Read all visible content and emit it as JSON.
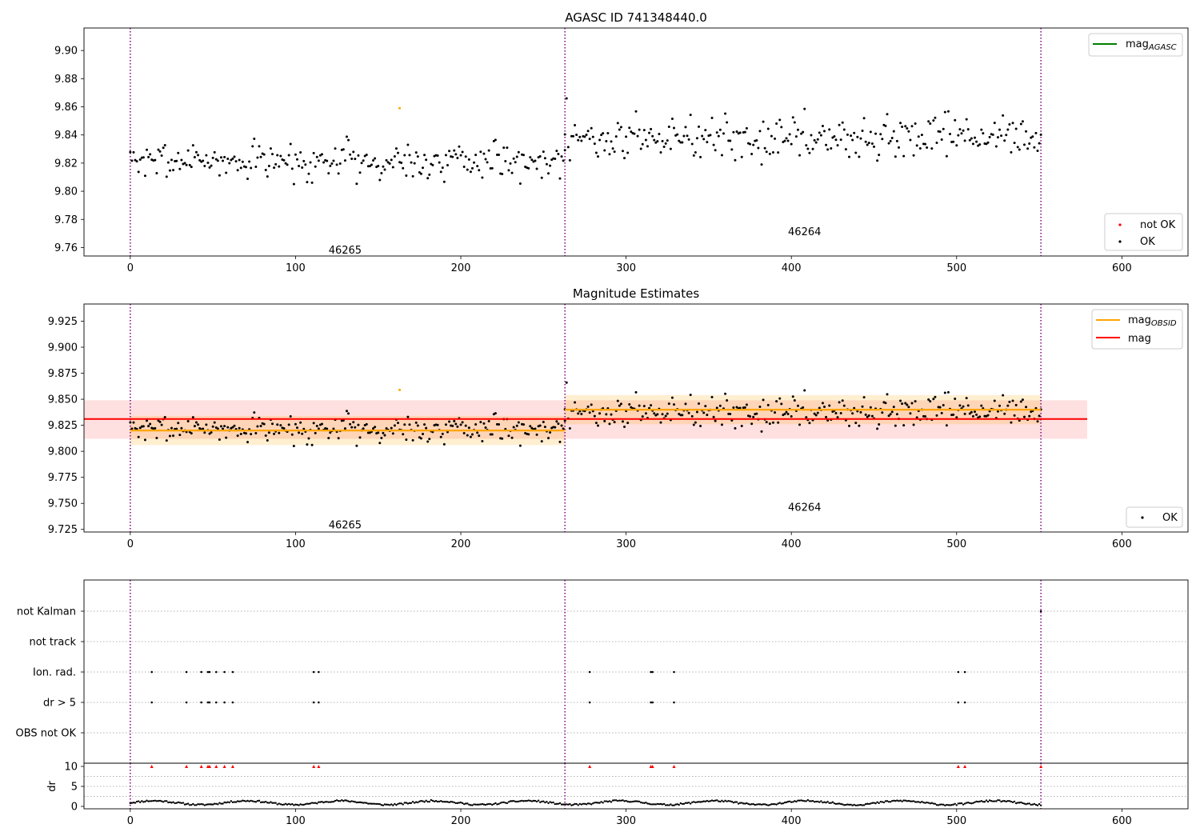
{
  "figure": {
    "panel1_title": "AGASC ID 741348440.0",
    "panel2_title": "Magnitude Estimates"
  },
  "chart_data": [
    {
      "type": "scatter",
      "title": "AGASC ID 741348440.0",
      "xlim": [
        -28,
        640
      ],
      "ylim": [
        9.754,
        9.916
      ],
      "xticks": [
        0,
        100,
        200,
        300,
        400,
        500,
        600
      ],
      "yticks": [
        9.76,
        9.78,
        9.8,
        9.82,
        9.84,
        9.86,
        9.88,
        9.9
      ],
      "grid": false,
      "observation_boundaries": [
        0,
        263,
        551
      ],
      "observation_labels": [
        {
          "text": "46265",
          "x": 130,
          "y": 9.758
        },
        {
          "text": "46264",
          "x": 408,
          "y": 9.771
        }
      ],
      "series": [
        {
          "name": "mag_AGASC",
          "kind": "line",
          "color": "#008000",
          "values": []
        },
        {
          "name": "not OK",
          "kind": "scatter",
          "color": "#ff0000",
          "values": []
        },
        {
          "name": "OK",
          "kind": "scatter",
          "color": "#000000",
          "seed": 7,
          "segments": [
            {
              "x": [
                0,
                263
              ],
              "center": 9.822,
              "spread": 0.013
            },
            {
              "x": [
                263,
                551
              ],
              "center": 9.838,
              "spread": 0.014
            }
          ]
        },
        {
          "name": "",
          "kind": "scatter",
          "color": "#ffa500",
          "points": [
            [
              163,
              9.859
            ]
          ]
        }
      ],
      "legend": {
        "upper": [
          "mag_AGASC"
        ],
        "lower": [
          "not OK",
          "OK"
        ],
        "placement": "top-right / bottom-right"
      }
    },
    {
      "type": "scatter",
      "title": "Magnitude Estimates",
      "xlim": [
        -28,
        640
      ],
      "ylim": [
        9.7225,
        9.9415
      ],
      "xticks": [
        0,
        100,
        200,
        300,
        400,
        500,
        600
      ],
      "yticks": [
        9.725,
        9.75,
        9.775,
        9.8,
        9.825,
        9.85,
        9.875,
        9.9,
        9.925
      ],
      "grid": false,
      "observation_boundaries": [
        0,
        263,
        551
      ],
      "observation_labels": [
        {
          "text": "46265",
          "x": 130,
          "y": 9.729
        },
        {
          "text": "46264",
          "x": 408,
          "y": 9.746
        }
      ],
      "mag": {
        "value": 9.831,
        "band": [
          9.812,
          9.849
        ],
        "x_range": [
          -28,
          579
        ],
        "color": "#ff0000"
      },
      "mag_obsid": [
        {
          "x": [
            0,
            263
          ],
          "value": 9.82,
          "band": [
            9.806,
            9.834
          ]
        },
        {
          "x": [
            263,
            551
          ],
          "value": 9.84,
          "band": [
            9.826,
            9.854
          ]
        }
      ],
      "series": [
        {
          "name": "mag_OBSID",
          "kind": "line",
          "color": "#ffa500"
        },
        {
          "name": "mag",
          "kind": "line",
          "color": "#ff0000"
        },
        {
          "name": "OK",
          "kind": "scatter",
          "color": "#000000",
          "seed": 7
        }
      ],
      "legend": {
        "upper": [
          "mag_OBSID",
          "mag"
        ],
        "lower": [
          "OK"
        ],
        "placement": "top-right / bottom-right"
      }
    },
    {
      "type": "scatter",
      "title": "",
      "xlim": [
        -28,
        640
      ],
      "xticks": [
        0,
        100,
        200,
        300,
        400,
        500,
        600
      ],
      "flag_rows": [
        "not Kalman",
        "not track",
        "Ion. rad.",
        "dr > 5",
        "OBS not OK"
      ],
      "flags": {
        "not Kalman": [
          551
        ],
        "not track": [],
        "Ion. rad.": [
          13,
          34,
          43,
          47,
          48,
          52,
          57,
          62,
          111,
          114,
          278,
          315,
          316,
          329,
          501,
          505
        ],
        "dr > 5": [
          13,
          34,
          43,
          47,
          48,
          52,
          57,
          62,
          111,
          114,
          278,
          315,
          316,
          329,
          501,
          505
        ],
        "OBS not OK": []
      },
      "observation_boundaries": [
        0,
        263,
        551
      ]
    },
    {
      "type": "scatter",
      "title": "",
      "ylabel": "dr",
      "xlim": [
        -28,
        640
      ],
      "ylim": [
        -0.6,
        10.8
      ],
      "yticks": [
        0,
        5,
        10
      ],
      "xticks": [
        0,
        100,
        200,
        300,
        400,
        500,
        600
      ],
      "clipped_points_y": 10,
      "clipped_points_x": [
        13,
        34,
        43,
        47,
        48,
        52,
        57,
        62,
        111,
        114,
        278,
        315,
        316,
        329,
        501,
        505,
        551
      ],
      "dr_baseline": {
        "x": [
          0,
          551
        ],
        "mean": 0.9,
        "amplitude": 0.7
      },
      "observation_boundaries": [
        0,
        263,
        551
      ]
    }
  ]
}
